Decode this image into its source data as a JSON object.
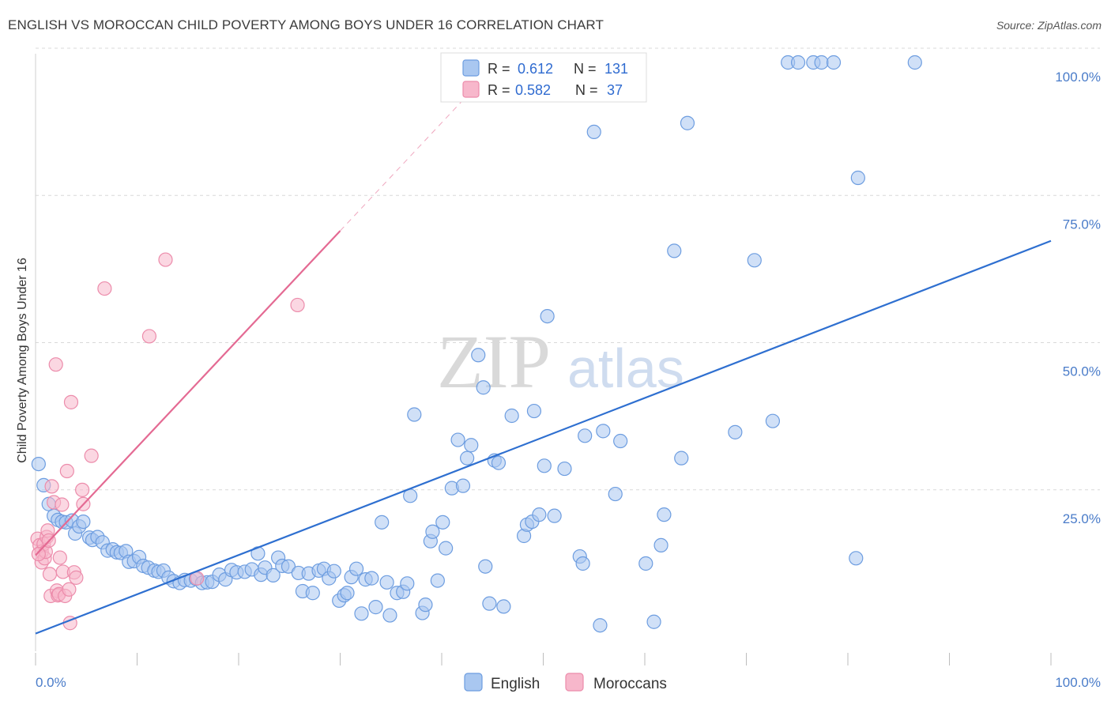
{
  "title": "ENGLISH VS MOROCCAN CHILD POVERTY AMONG BOYS UNDER 16 CORRELATION CHART",
  "source": "Source: ZipAtlas.com",
  "watermark": {
    "zip": "ZIP",
    "atlas": "atlas"
  },
  "colors": {
    "english_fill": "#a9c7f0",
    "english_stroke": "#6d9de0",
    "english_line": "#2e6fd0",
    "moroccan_fill": "#f7b7cb",
    "moroccan_stroke": "#ec8cab",
    "moroccan_line": "#e46a93",
    "grid": "#d9d9d9",
    "axis_label": "#4a7cc9"
  },
  "legend": {
    "r_label": "R =",
    "n_label": "N =",
    "english": {
      "r": "0.612",
      "n": "131"
    },
    "moroccan": {
      "r": "0.582",
      "n": "37"
    }
  },
  "chart_data": {
    "type": "scatter",
    "title": "ENGLISH VS MOROCCAN CHILD POVERTY AMONG BOYS UNDER 16 CORRELATION CHART",
    "xlabel": "",
    "ylabel": "Child Poverty Among Boys Under 16",
    "xlim": [
      0,
      100
    ],
    "ylim": [
      0,
      100
    ],
    "x_tick_labels": [
      "0.0%",
      "100.0%"
    ],
    "y_ticks": [
      25,
      50,
      75,
      100
    ],
    "y_tick_labels": [
      "25.0%",
      "50.0%",
      "75.0%",
      "100.0%"
    ],
    "grid": true,
    "legend_position": "top-center",
    "bottom_legend": [
      "English",
      "Moroccans"
    ],
    "series": [
      {
        "name": "English",
        "r": 0.612,
        "n": 131,
        "trend": {
          "x": [
            0,
            100
          ],
          "y": [
            3.0,
            69.7
          ]
        },
        "points": [
          [
            0.3,
            31.8
          ],
          [
            0.8,
            28.2
          ],
          [
            1.3,
            25.0
          ],
          [
            1.8,
            23.0
          ],
          [
            2.2,
            22.3
          ],
          [
            2.6,
            22.0
          ],
          [
            3.0,
            21.9
          ],
          [
            3.6,
            22.2
          ],
          [
            3.9,
            20.0
          ],
          [
            4.3,
            21.2
          ],
          [
            4.7,
            22.0
          ],
          [
            5.3,
            19.3
          ],
          [
            5.6,
            18.9
          ],
          [
            6.1,
            19.4
          ],
          [
            6.6,
            18.5
          ],
          [
            7.1,
            17.1
          ],
          [
            7.6,
            17.3
          ],
          [
            8.0,
            16.8
          ],
          [
            8.4,
            16.7
          ],
          [
            8.9,
            17.0
          ],
          [
            9.2,
            15.2
          ],
          [
            9.7,
            15.3
          ],
          [
            10.2,
            16.0
          ],
          [
            10.6,
            14.5
          ],
          [
            11.1,
            14.2
          ],
          [
            11.7,
            13.7
          ],
          [
            12.1,
            13.5
          ],
          [
            12.6,
            13.7
          ],
          [
            13.1,
            12.5
          ],
          [
            13.6,
            11.9
          ],
          [
            14.2,
            11.6
          ],
          [
            14.7,
            12.1
          ],
          [
            15.3,
            12.0
          ],
          [
            15.8,
            12.3
          ],
          [
            16.4,
            11.6
          ],
          [
            16.9,
            11.7
          ],
          [
            17.4,
            11.8
          ],
          [
            18.1,
            13.0
          ],
          [
            18.7,
            12.2
          ],
          [
            19.3,
            13.8
          ],
          [
            19.8,
            13.4
          ],
          [
            20.6,
            13.5
          ],
          [
            21.3,
            13.9
          ],
          [
            21.9,
            16.6
          ],
          [
            22.2,
            13.0
          ],
          [
            22.6,
            14.2
          ],
          [
            23.4,
            12.9
          ],
          [
            23.9,
            15.9
          ],
          [
            24.3,
            14.5
          ],
          [
            24.9,
            14.4
          ],
          [
            25.9,
            13.3
          ],
          [
            26.3,
            10.2
          ],
          [
            26.9,
            13.2
          ],
          [
            27.3,
            9.9
          ],
          [
            27.9,
            13.7
          ],
          [
            28.4,
            14.0
          ],
          [
            28.9,
            12.4
          ],
          [
            29.4,
            13.6
          ],
          [
            29.9,
            8.6
          ],
          [
            30.4,
            9.5
          ],
          [
            30.7,
            9.9
          ],
          [
            31.1,
            12.6
          ],
          [
            31.6,
            14.0
          ],
          [
            32.1,
            6.4
          ],
          [
            32.5,
            12.2
          ],
          [
            33.1,
            12.4
          ],
          [
            33.5,
            7.5
          ],
          [
            34.1,
            21.9
          ],
          [
            34.6,
            11.7
          ],
          [
            34.9,
            6.1
          ],
          [
            35.6,
            9.9
          ],
          [
            36.2,
            10.1
          ],
          [
            36.6,
            11.5
          ],
          [
            36.9,
            26.4
          ],
          [
            37.3,
            40.2
          ],
          [
            38.1,
            6.5
          ],
          [
            38.4,
            7.9
          ],
          [
            38.9,
            18.7
          ],
          [
            39.1,
            20.3
          ],
          [
            39.6,
            12.0
          ],
          [
            40.1,
            21.9
          ],
          [
            40.4,
            17.5
          ],
          [
            41.0,
            27.7
          ],
          [
            41.6,
            35.9
          ],
          [
            42.1,
            28.1
          ],
          [
            42.5,
            32.8
          ],
          [
            42.9,
            35.0
          ],
          [
            43.6,
            50.3
          ],
          [
            44.1,
            44.8
          ],
          [
            44.3,
            14.4
          ],
          [
            44.7,
            8.1
          ],
          [
            45.2,
            32.4
          ],
          [
            45.6,
            32.0
          ],
          [
            46.1,
            7.6
          ],
          [
            46.9,
            40.0
          ],
          [
            48.1,
            19.6
          ],
          [
            48.4,
            21.5
          ],
          [
            48.9,
            22.0
          ],
          [
            49.1,
            40.8
          ],
          [
            49.6,
            23.2
          ],
          [
            50.1,
            31.5
          ],
          [
            50.4,
            56.9
          ],
          [
            51.1,
            23.0
          ],
          [
            52.1,
            31.0
          ],
          [
            53.6,
            16.1
          ],
          [
            53.9,
            14.9
          ],
          [
            54.1,
            36.6
          ],
          [
            55.0,
            88.2
          ],
          [
            55.6,
            4.4
          ],
          [
            55.9,
            37.4
          ],
          [
            57.1,
            26.7
          ],
          [
            57.6,
            35.7
          ],
          [
            60.1,
            14.9
          ],
          [
            60.9,
            5.0
          ],
          [
            61.6,
            18.0
          ],
          [
            61.9,
            23.2
          ],
          [
            62.9,
            68.0
          ],
          [
            63.6,
            32.8
          ],
          [
            64.2,
            89.7
          ],
          [
            68.9,
            37.2
          ],
          [
            70.8,
            66.4
          ],
          [
            72.6,
            39.1
          ],
          [
            74.1,
            100
          ],
          [
            75.1,
            100
          ],
          [
            76.6,
            100
          ],
          [
            77.4,
            100
          ],
          [
            78.6,
            100
          ],
          [
            80.8,
            15.8
          ],
          [
            81.0,
            80.4
          ],
          [
            86.6,
            100
          ],
          [
            58.1,
            100
          ]
        ]
      },
      {
        "name": "Moroccans",
        "r": 0.582,
        "n": 37,
        "trend": {
          "x": [
            0,
            30
          ],
          "y": [
            16.3,
            71.4
          ]
        },
        "points": [
          [
            0.2,
            19.1
          ],
          [
            0.4,
            18.0
          ],
          [
            0.6,
            16.9
          ],
          [
            0.6,
            15.1
          ],
          [
            0.8,
            18.2
          ],
          [
            0.9,
            15.8
          ],
          [
            1.0,
            16.9
          ],
          [
            1.1,
            19.4
          ],
          [
            1.2,
            20.5
          ],
          [
            1.3,
            18.8
          ],
          [
            1.4,
            13.1
          ],
          [
            1.5,
            9.4
          ],
          [
            1.6,
            28.0
          ],
          [
            1.8,
            25.3
          ],
          [
            2.0,
            48.7
          ],
          [
            2.1,
            10.3
          ],
          [
            2.2,
            9.5
          ],
          [
            2.3,
            9.7
          ],
          [
            2.4,
            15.9
          ],
          [
            2.6,
            24.9
          ],
          [
            2.7,
            13.5
          ],
          [
            2.9,
            9.4
          ],
          [
            3.1,
            30.6
          ],
          [
            3.3,
            10.5
          ],
          [
            3.4,
            4.8
          ],
          [
            3.5,
            42.3
          ],
          [
            3.8,
            13.4
          ],
          [
            4.0,
            12.5
          ],
          [
            4.6,
            27.4
          ],
          [
            4.7,
            25.0
          ],
          [
            5.5,
            33.2
          ],
          [
            6.8,
            61.6
          ],
          [
            11.2,
            53.5
          ],
          [
            12.8,
            66.5
          ],
          [
            15.9,
            12.4
          ],
          [
            25.8,
            58.8
          ],
          [
            0.3,
            16.5
          ]
        ]
      }
    ]
  }
}
